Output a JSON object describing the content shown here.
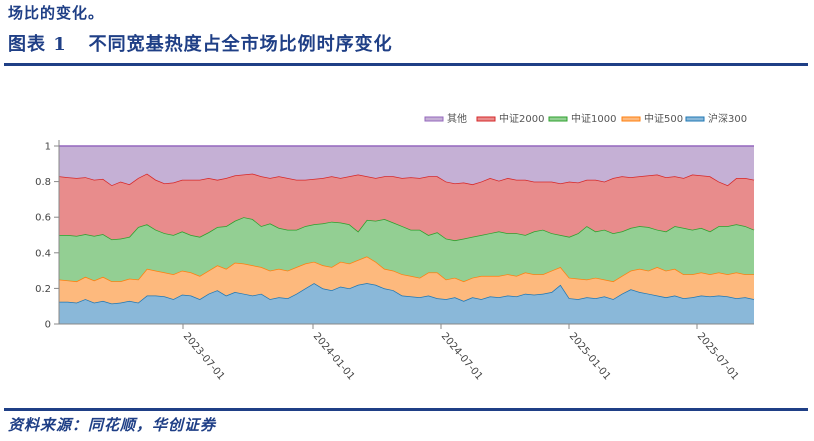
{
  "intro_text": "场比的变化。",
  "figure": {
    "label": "图表 1",
    "title": "不同宽基热度占全市场比例时序变化",
    "full_title": "图表 1   不同宽基热度占全市场比例时序变化"
  },
  "source": "资料来源：同花顺，华创证券",
  "colors": {
    "brand": "#1f3f86",
    "series": {
      "其他": {
        "line": "#9467bd",
        "fill": "#c5b0d5"
      },
      "中证2000": {
        "line": "#d62728",
        "fill": "#e88c8c"
      },
      "中证1000": {
        "line": "#2ca02c",
        "fill": "#93cf93"
      },
      "中证500": {
        "line": "#ff7f0e",
        "fill": "#fdb97d"
      },
      "沪深300": {
        "line": "#1f77b4",
        "fill": "#8ab8d9"
      }
    }
  },
  "chart_data": {
    "type": "area",
    "stacked": true,
    "title": "不同宽基热度占全市场比例时序变化",
    "xlabel": "",
    "ylabel": "",
    "ylim": [
      0,
      1
    ],
    "yticks": [
      "0",
      "0.2",
      "0.4",
      "0.6",
      "0.8",
      "1"
    ],
    "xticks": [
      "2023-07-01",
      "2024-01-01",
      "2024-07-01",
      "2025-01-01",
      "2025-07-01"
    ],
    "x_range": [
      "2023-01",
      "2025-09"
    ],
    "grid": false,
    "legend_position": "top-right",
    "legend": [
      "其他",
      "中证2000",
      "中证1000",
      "中证500",
      "沪深300"
    ],
    "note": "Cumulative (stacked) upper boundary of each band, sampled roughly biweekly; 其他 fills to 1.0",
    "cumulative": {
      "沪深300": [
        0.125,
        0.125,
        0.12,
        0.14,
        0.12,
        0.13,
        0.115,
        0.12,
        0.13,
        0.12,
        0.16,
        0.16,
        0.155,
        0.14,
        0.165,
        0.16,
        0.14,
        0.17,
        0.19,
        0.16,
        0.18,
        0.17,
        0.16,
        0.17,
        0.14,
        0.15,
        0.145,
        0.17,
        0.2,
        0.23,
        0.2,
        0.19,
        0.21,
        0.2,
        0.22,
        0.23,
        0.22,
        0.2,
        0.19,
        0.16,
        0.155,
        0.15,
        0.16,
        0.145,
        0.14,
        0.15,
        0.13,
        0.15,
        0.14,
        0.155,
        0.15,
        0.16,
        0.155,
        0.17,
        0.165,
        0.17,
        0.18,
        0.22,
        0.145,
        0.14,
        0.15,
        0.145,
        0.155,
        0.14,
        0.17,
        0.195,
        0.18,
        0.17,
        0.16,
        0.15,
        0.16,
        0.145,
        0.15,
        0.16,
        0.155,
        0.16,
        0.155,
        0.145,
        0.15,
        0.14
      ],
      "中证500": [
        0.25,
        0.245,
        0.24,
        0.265,
        0.245,
        0.265,
        0.24,
        0.24,
        0.255,
        0.25,
        0.31,
        0.3,
        0.29,
        0.28,
        0.3,
        0.29,
        0.27,
        0.3,
        0.33,
        0.31,
        0.345,
        0.34,
        0.33,
        0.32,
        0.3,
        0.31,
        0.3,
        0.32,
        0.34,
        0.35,
        0.33,
        0.32,
        0.35,
        0.34,
        0.36,
        0.38,
        0.35,
        0.31,
        0.3,
        0.28,
        0.27,
        0.26,
        0.29,
        0.29,
        0.25,
        0.26,
        0.24,
        0.26,
        0.27,
        0.27,
        0.27,
        0.28,
        0.27,
        0.29,
        0.28,
        0.28,
        0.3,
        0.32,
        0.26,
        0.255,
        0.25,
        0.26,
        0.25,
        0.24,
        0.27,
        0.3,
        0.31,
        0.3,
        0.32,
        0.3,
        0.31,
        0.28,
        0.28,
        0.29,
        0.28,
        0.29,
        0.28,
        0.29,
        0.28,
        0.28
      ],
      "中证1000": [
        0.5,
        0.5,
        0.495,
        0.505,
        0.495,
        0.505,
        0.475,
        0.48,
        0.49,
        0.545,
        0.56,
        0.53,
        0.51,
        0.5,
        0.52,
        0.5,
        0.49,
        0.515,
        0.545,
        0.55,
        0.58,
        0.6,
        0.59,
        0.55,
        0.565,
        0.54,
        0.53,
        0.53,
        0.55,
        0.56,
        0.565,
        0.575,
        0.57,
        0.56,
        0.52,
        0.585,
        0.58,
        0.59,
        0.57,
        0.55,
        0.53,
        0.53,
        0.5,
        0.515,
        0.48,
        0.47,
        0.48,
        0.49,
        0.5,
        0.51,
        0.52,
        0.51,
        0.51,
        0.5,
        0.52,
        0.53,
        0.51,
        0.5,
        0.49,
        0.51,
        0.55,
        0.52,
        0.53,
        0.51,
        0.52,
        0.54,
        0.55,
        0.545,
        0.53,
        0.52,
        0.55,
        0.54,
        0.53,
        0.54,
        0.52,
        0.55,
        0.55,
        0.56,
        0.55,
        0.53
      ],
      "中证2000": [
        0.83,
        0.825,
        0.82,
        0.825,
        0.81,
        0.815,
        0.78,
        0.8,
        0.785,
        0.82,
        0.845,
        0.81,
        0.79,
        0.795,
        0.81,
        0.81,
        0.81,
        0.82,
        0.81,
        0.82,
        0.835,
        0.84,
        0.845,
        0.83,
        0.82,
        0.83,
        0.82,
        0.81,
        0.81,
        0.815,
        0.82,
        0.83,
        0.82,
        0.83,
        0.84,
        0.83,
        0.82,
        0.83,
        0.83,
        0.82,
        0.825,
        0.82,
        0.83,
        0.83,
        0.8,
        0.79,
        0.795,
        0.785,
        0.8,
        0.82,
        0.805,
        0.82,
        0.81,
        0.81,
        0.8,
        0.8,
        0.8,
        0.79,
        0.8,
        0.795,
        0.81,
        0.81,
        0.8,
        0.82,
        0.83,
        0.825,
        0.83,
        0.835,
        0.84,
        0.825,
        0.83,
        0.82,
        0.84,
        0.835,
        0.83,
        0.8,
        0.78,
        0.82,
        0.82,
        0.81
      ],
      "其他": [
        1,
        1,
        1,
        1,
        1,
        1,
        1,
        1,
        1,
        1,
        1,
        1,
        1,
        1,
        1,
        1,
        1,
        1,
        1,
        1,
        1,
        1,
        1,
        1,
        1,
        1,
        1,
        1,
        1,
        1,
        1,
        1,
        1,
        1,
        1,
        1,
        1,
        1,
        1,
        1,
        1,
        1,
        1,
        1,
        1,
        1,
        1,
        1,
        1,
        1,
        1,
        1,
        1,
        1,
        1,
        1,
        1,
        1,
        1,
        1,
        1,
        1,
        1,
        1,
        1,
        1,
        1,
        1,
        1,
        1,
        1,
        1,
        1,
        1,
        1,
        1,
        1,
        1,
        1,
        1
      ]
    },
    "series_approx_share": [
      {
        "name": "沪深300",
        "typical": 0.16
      },
      {
        "name": "中证500",
        "typical": 0.13
      },
      {
        "name": "中证1000",
        "typical": 0.24
      },
      {
        "name": "中证2000",
        "typical": 0.29
      },
      {
        "name": "其他",
        "typical": 0.18
      }
    ]
  }
}
